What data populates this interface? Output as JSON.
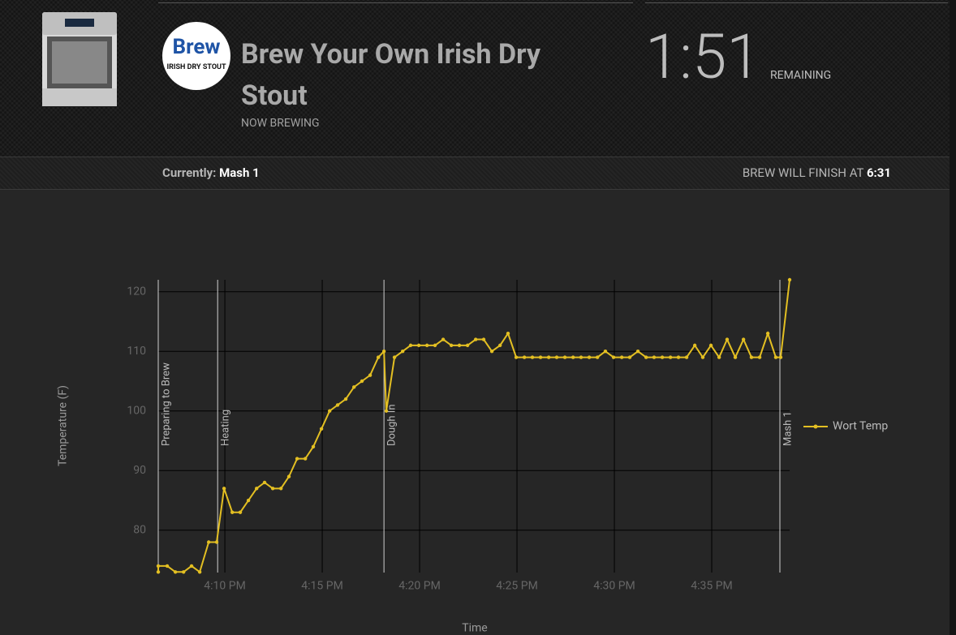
{
  "header": {
    "logo_text": "Brew",
    "logo_subtitle": "IRISH DRY STOUT",
    "title": "Brew Your Own Irish Dry Stout",
    "subtitle": "NOW BREWING",
    "countdown": "1:51",
    "countdown_label": "REMAINING"
  },
  "status": {
    "label": "Currently:",
    "value": "Mash 1",
    "finish_label": "BREW WILL FINISH AT",
    "finish_time": "6:31"
  },
  "chart_data": {
    "type": "line",
    "xlabel": "Time",
    "ylabel": "Temperature (F)",
    "x": [
      6.58,
      6.58,
      7.04,
      7.46,
      7.88,
      8.29,
      8.71,
      9.17,
      9.58,
      9.96,
      10.38,
      10.79,
      11.21,
      11.63,
      12.04,
      12.46,
      12.88,
      13.29,
      13.71,
      14.13,
      14.54,
      14.96,
      15.38,
      15.79,
      16.21,
      16.63,
      17.04,
      17.46,
      17.88,
      18.17,
      18.29,
      18.71,
      19.13,
      19.54,
      19.96,
      20.38,
      20.79,
      21.21,
      21.63,
      22.04,
      22.46,
      22.88,
      23.29,
      23.71,
      24.13,
      24.54,
      24.96,
      25.38,
      25.79,
      26.21,
      26.63,
      27.04,
      27.46,
      27.88,
      28.29,
      28.71,
      29.13,
      29.54,
      29.96,
      30.38,
      30.79,
      31.21,
      31.63,
      32.04,
      32.46,
      32.88,
      33.29,
      33.71,
      34.13,
      34.54,
      34.96,
      35.38,
      35.79,
      36.21,
      36.63,
      37.04,
      37.46,
      37.88,
      38.29,
      38.54,
      39.0
    ],
    "series": [
      {
        "name": "Wort Temp",
        "color": "#e3bf22",
        "values": [
          73,
          74,
          74,
          73,
          73,
          74,
          73,
          78,
          78,
          87,
          83,
          83,
          85,
          87,
          88,
          87,
          87,
          89,
          92,
          92,
          94,
          97,
          100,
          101,
          102,
          104,
          105,
          106,
          109,
          110,
          100,
          109,
          110,
          111,
          111,
          111,
          111,
          112,
          111,
          111,
          111,
          112,
          112,
          110,
          111,
          113,
          109,
          109,
          109,
          109,
          109,
          109,
          109,
          109,
          109,
          109,
          109,
          110,
          109,
          109,
          109,
          110,
          109,
          109,
          109,
          109,
          109,
          109,
          111,
          109,
          111,
          109,
          112,
          109,
          112,
          109,
          109,
          113,
          109,
          109,
          122
        ]
      }
    ],
    "xlim": [
      6.58,
      39.0
    ],
    "ylim": [
      72.9,
      122
    ],
    "xticks": [
      {
        "value": 10,
        "label": "4:10 PM"
      },
      {
        "value": 15,
        "label": "4:15 PM"
      },
      {
        "value": 20,
        "label": "4:20 PM"
      },
      {
        "value": 25,
        "label": "4:25 PM"
      },
      {
        "value": 30,
        "label": "4:30 PM"
      },
      {
        "value": 35,
        "label": "4:35 PM"
      }
    ],
    "yticks": [
      80,
      90,
      100,
      110,
      120
    ],
    "events": [
      {
        "label": "Preparing to Brew",
        "x": 6.58
      },
      {
        "label": "Heating",
        "x": 9.63
      },
      {
        "label": "Dough In",
        "x": 18.17
      },
      {
        "label": "Mash 1",
        "x": 38.5
      }
    ],
    "grid": true,
    "legend": "right"
  }
}
